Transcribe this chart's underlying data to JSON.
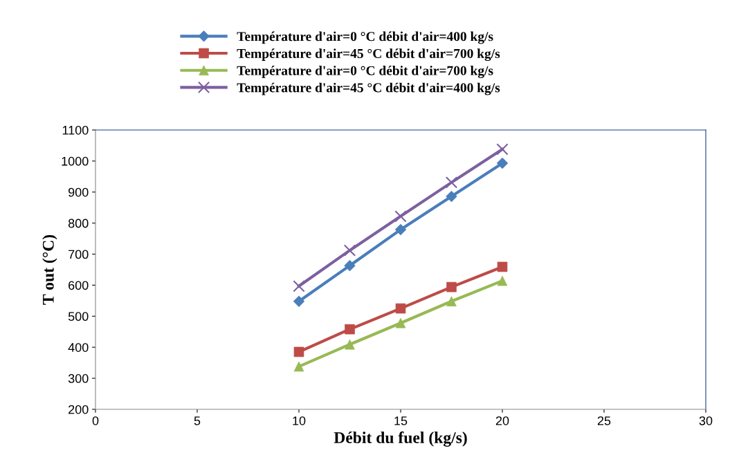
{
  "chart_data": {
    "type": "line",
    "xlabel": "Débit du fuel (kg/s)",
    "ylabel": "T out (°C)",
    "x": [
      10,
      12.5,
      15,
      17.5,
      20
    ],
    "series": [
      {
        "name": "Température d'air=0 °C débit d'air=400 kg/s",
        "color": "#4a7ebb",
        "marker": "diamond",
        "values": [
          548,
          663,
          779,
          886,
          993
        ]
      },
      {
        "name": "Température d'air=45 °C débit d'air=700 kg/s",
        "color": "#be4b48",
        "marker": "square",
        "values": [
          385,
          458,
          525,
          594,
          659
        ]
      },
      {
        "name": "Température d'air=0 °C débit d'air=700 kg/s",
        "color": "#98b954",
        "marker": "triangle",
        "values": [
          338,
          409,
          478,
          548,
          614
        ]
      },
      {
        "name": "Température d'air=45 °C débit d'air=400 kg/s",
        "color": "#7d60a0",
        "marker": "cross",
        "values": [
          597,
          712,
          822,
          931,
          1038
        ]
      }
    ],
    "xlim": [
      0,
      30
    ],
    "xticks": [
      0,
      5,
      10,
      15,
      20,
      25,
      30
    ],
    "ylim": [
      200,
      1100
    ],
    "yticks": [
      200,
      300,
      400,
      500,
      600,
      700,
      800,
      900,
      1000,
      1100
    ],
    "grid": false,
    "legend": "top",
    "line_style": "solid"
  }
}
